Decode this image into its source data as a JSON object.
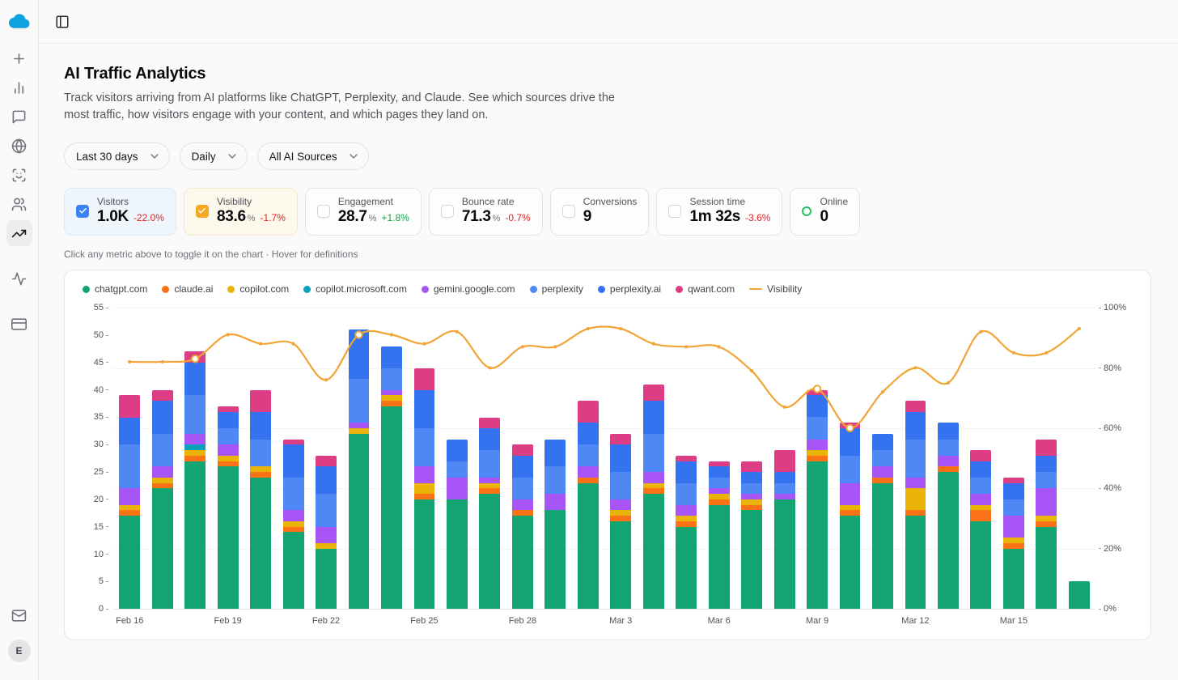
{
  "topbar": {
    "toggle_icon": "panel-left"
  },
  "sidebar": {
    "logo_icon": "cloud",
    "logo_color": "#0ea2e0",
    "items": [
      {
        "icon": "plus",
        "name": "new"
      },
      {
        "icon": "bar-chart",
        "name": "charts"
      },
      {
        "icon": "message-square",
        "name": "chat"
      },
      {
        "icon": "globe",
        "name": "web"
      },
      {
        "icon": "scan-face",
        "name": "identity"
      },
      {
        "icon": "users",
        "name": "audience"
      },
      {
        "icon": "trending-up",
        "name": "traffic-trends",
        "active": true
      },
      {
        "icon": "activity",
        "name": "activity",
        "group_gap": true
      },
      {
        "icon": "credit-card",
        "name": "billing",
        "group_gap": true
      }
    ],
    "bottom_items": [
      {
        "icon": "mail",
        "name": "inbox"
      }
    ],
    "avatar_letter": "E"
  },
  "header": {
    "title": "AI Traffic Analytics",
    "description": "Track visitors arriving from AI platforms like ChatGPT, Perplexity, and Claude. See which sources drive the most traffic, how visitors engage with your content, and which pages they land on."
  },
  "filters": [
    {
      "id": "date-range",
      "label": "Last 30 days"
    },
    {
      "id": "granularity",
      "label": "Daily"
    },
    {
      "id": "source",
      "label": "All AI Sources"
    }
  ],
  "metrics": [
    {
      "id": "visitors",
      "label": "Visitors",
      "value": "1.0K",
      "delta": "-22.0%",
      "delta_color": "#dc2626",
      "checkbox": true,
      "checked": true,
      "accent": "#3b82f6",
      "bg": "#eff6fb",
      "border": "#dce8f3"
    },
    {
      "id": "visibility",
      "label": "Visibility",
      "value": "83.6",
      "unit": "%",
      "delta": "-1.7%",
      "delta_color": "#dc2626",
      "checkbox": true,
      "checked": true,
      "accent": "#f6a723",
      "bg": "#fdf8ec",
      "border": "#f2e7c9"
    },
    {
      "id": "engagement",
      "label": "Engagement",
      "value": "28.7",
      "unit": "%",
      "delta": "+1.8%",
      "delta_color": "#16a34a",
      "checkbox": true,
      "checked": false
    },
    {
      "id": "bounce-rate",
      "label": "Bounce rate",
      "value": "71.3",
      "unit": "%",
      "delta": "-0.7%",
      "delta_color": "#dc2626",
      "checkbox": true,
      "checked": false
    },
    {
      "id": "conversions",
      "label": "Conversions",
      "value": "9",
      "checkbox": true,
      "checked": false
    },
    {
      "id": "session-time",
      "label": "Session time",
      "value": "1m 32s",
      "delta": "-3.6%",
      "delta_color": "#dc2626",
      "checkbox": true,
      "checked": false
    },
    {
      "id": "online",
      "label": "Online",
      "value": "0",
      "indicator": "online-dot",
      "indicator_color": "#22c55e"
    }
  ],
  "hint": "Click any metric above to toggle it on the chart · Hover for definitions",
  "chart_data": {
    "type": "bar",
    "stacked": true,
    "legend_position": "top-left",
    "grid": true,
    "categories": [
      "Feb 16",
      "Feb 17",
      "Feb 18",
      "Feb 19",
      "Feb 20",
      "Feb 21",
      "Feb 22",
      "Feb 23",
      "Feb 24",
      "Feb 25",
      "Feb 26",
      "Feb 27",
      "Feb 28",
      "Mar 1",
      "Mar 2",
      "Mar 3",
      "Mar 4",
      "Mar 5",
      "Mar 6",
      "Mar 7",
      "Mar 8",
      "Mar 9",
      "Mar 10",
      "Mar 11",
      "Mar 12",
      "Mar 13",
      "Mar 14",
      "Mar 15",
      "Mar 16",
      "Mar 17"
    ],
    "x_label_indexes": [
      0,
      3,
      6,
      9,
      12,
      15,
      18,
      21,
      24,
      27
    ],
    "left_axis": {
      "min": 0,
      "max": 55,
      "ticks": [
        0,
        5,
        10,
        15,
        20,
        25,
        30,
        35,
        40,
        45,
        50,
        55
      ]
    },
    "right_axis": {
      "min": 0,
      "max": 100,
      "unit": "%",
      "ticks": [
        0,
        20,
        40,
        60,
        80,
        100
      ]
    },
    "series": [
      {
        "name": "chatgpt.com",
        "color": "#12a471",
        "values": [
          17,
          22,
          27,
          26,
          24,
          14,
          11,
          32,
          37,
          20,
          20,
          21,
          17,
          18,
          23,
          16,
          21,
          15,
          19,
          18,
          20,
          27,
          17,
          23,
          17,
          25,
          16,
          11,
          15,
          5
        ]
      },
      {
        "name": "claude.ai",
        "color": "#f97316",
        "values": [
          1,
          1,
          1,
          1,
          1,
          1,
          0,
          0,
          1,
          1,
          0,
          1,
          1,
          0,
          1,
          1,
          1,
          1,
          1,
          1,
          0,
          1,
          1,
          1,
          1,
          1,
          2,
          1,
          1,
          0
        ]
      },
      {
        "name": "copilot.com",
        "color": "#eab308",
        "values": [
          1,
          1,
          1,
          1,
          1,
          1,
          1,
          1,
          1,
          2,
          0,
          1,
          0,
          0,
          0,
          1,
          1,
          1,
          1,
          1,
          0,
          1,
          1,
          0,
          4,
          0,
          1,
          1,
          1,
          0
        ]
      },
      {
        "name": "copilot.microsoft.com",
        "color": "#0aa2b8",
        "values": [
          0,
          0,
          1,
          0,
          0,
          0,
          0,
          0,
          0,
          0,
          0,
          0,
          0,
          0,
          0,
          0,
          0,
          0,
          0,
          0,
          0,
          0,
          0,
          0,
          0,
          0,
          0,
          0,
          0,
          0
        ]
      },
      {
        "name": "gemini.google.com",
        "color": "#a855f7",
        "values": [
          3,
          2,
          2,
          2,
          0,
          2,
          3,
          1,
          1,
          3,
          4,
          1,
          2,
          3,
          2,
          2,
          2,
          2,
          1,
          1,
          1,
          2,
          4,
          2,
          2,
          2,
          2,
          4,
          5,
          0
        ]
      },
      {
        "name": "perplexity",
        "color": "#4f87f5",
        "values": [
          8,
          6,
          7,
          3,
          5,
          6,
          6,
          8,
          4,
          7,
          3,
          5,
          4,
          5,
          4,
          5,
          7,
          4,
          2,
          2,
          2,
          4,
          5,
          3,
          7,
          3,
          3,
          3,
          3,
          0
        ]
      },
      {
        "name": "perplexity.ai",
        "color": "#3472f0",
        "values": [
          5,
          6,
          6,
          3,
          5,
          6,
          5,
          9,
          4,
          7,
          4,
          4,
          4,
          5,
          4,
          5,
          6,
          4,
          2,
          2,
          2,
          4,
          5,
          3,
          5,
          3,
          3,
          3,
          3,
          0
        ]
      },
      {
        "name": "qwant.com",
        "color": "#dd3d84",
        "values": [
          4,
          2,
          2,
          1,
          4,
          1,
          2,
          0,
          0,
          4,
          0,
          2,
          2,
          0,
          4,
          2,
          3,
          1,
          1,
          2,
          4,
          1,
          1,
          0,
          2,
          0,
          2,
          1,
          3,
          0
        ]
      }
    ],
    "line_series": {
      "name": "Visibility",
      "color": "#f0a534",
      "axis": "right",
      "values": [
        82,
        82,
        83,
        91,
        88,
        88,
        76,
        91,
        91,
        88,
        92,
        80,
        87,
        87,
        93,
        93,
        88,
        87,
        87,
        79,
        67,
        73,
        60,
        72,
        80,
        75,
        92,
        85,
        85,
        93
      ],
      "highlight_points": [
        2,
        7,
        21,
        22
      ]
    }
  }
}
